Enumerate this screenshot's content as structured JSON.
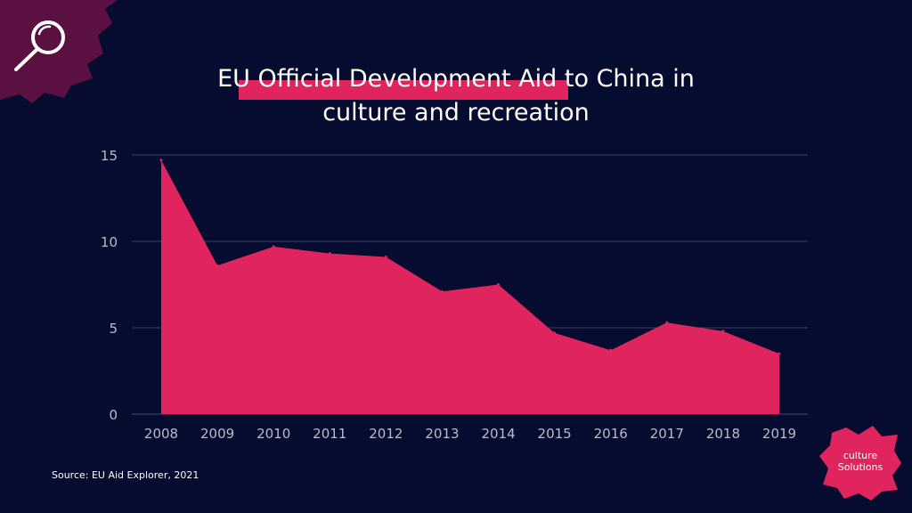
{
  "title": {
    "line1": "EU Official Development Aid to China in",
    "line2": "culture and recreation"
  },
  "source": "Source: EU Aid Explorer, 2021",
  "logo": {
    "line1": "culture",
    "line2": "Solutions"
  },
  "colors": {
    "background": "#050c2f",
    "accent": "#e0245e",
    "splash": "#5a1040",
    "grid": "#3a4066",
    "text": "#ffffff",
    "tick": "#b8bccb"
  },
  "icons": {
    "corner": "magnifier-icon"
  },
  "chart_data": {
    "type": "area",
    "categories": [
      "2008",
      "2009",
      "2010",
      "2011",
      "2012",
      "2013",
      "2014",
      "2015",
      "2016",
      "2017",
      "2018",
      "2019"
    ],
    "values": [
      14.7,
      8.6,
      9.7,
      9.3,
      9.1,
      7.1,
      7.5,
      4.7,
      3.7,
      5.3,
      4.8,
      3.5
    ],
    "ylim": [
      0,
      15
    ],
    "yticks": [
      0,
      5,
      10,
      15
    ],
    "grid": true,
    "title": "EU Official Development Aid to China in culture and recreation"
  }
}
